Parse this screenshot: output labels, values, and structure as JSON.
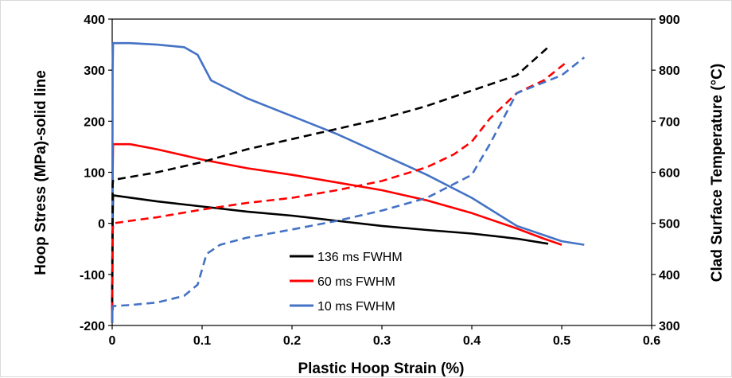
{
  "chart_data": {
    "type": "line",
    "title": "",
    "xlabel": "Plastic Hoop Strain (%)",
    "ylabel": "Hoop Stress (MPa)-solid line",
    "y2label": "Clad Surface Temperature (°C)",
    "xlim": [
      0,
      0.6
    ],
    "ylim": [
      -200,
      400
    ],
    "y2lim": [
      300,
      900
    ],
    "x_ticks": [
      "0",
      "0.1",
      "0.2",
      "0.3",
      "0.4",
      "0.5",
      "0.6"
    ],
    "y_ticks": [
      "-200",
      "-100",
      "0",
      "100",
      "200",
      "300",
      "400"
    ],
    "y2_ticks": [
      "300",
      "400",
      "500",
      "600",
      "700",
      "800",
      "900"
    ],
    "grid": false,
    "legend": {
      "position": "bottom-center",
      "entries": [
        {
          "label": "136 ms FWHM",
          "color": "#000000"
        },
        {
          "label": "60 ms FWHM",
          "color": "#ff0000"
        },
        {
          "label": "10 ms FWHM",
          "color": "#4472c4"
        }
      ]
    },
    "series": [
      {
        "name": "136 ms FWHM",
        "color": "#000000",
        "style": "solid",
        "axis": "left",
        "x": [
          0,
          0.0005,
          0.001,
          0.05,
          0.1,
          0.15,
          0.2,
          0.25,
          0.3,
          0.35,
          0.4,
          0.45,
          0.485
        ],
        "y": [
          -195,
          0,
          55,
          43,
          33,
          23,
          15,
          5,
          -5,
          -13,
          -20,
          -30,
          -40
        ]
      },
      {
        "name": "60 ms FWHM",
        "color": "#ff0000",
        "style": "solid",
        "axis": "left",
        "x": [
          0,
          0.0005,
          0.001,
          0.02,
          0.05,
          0.1,
          0.15,
          0.2,
          0.25,
          0.3,
          0.35,
          0.4,
          0.45,
          0.48,
          0.5
        ],
        "y": [
          -195,
          100,
          155,
          155,
          145,
          125,
          108,
          95,
          80,
          65,
          45,
          20,
          -10,
          -30,
          -42
        ]
      },
      {
        "name": "10 ms FWHM",
        "color": "#4472c4",
        "style": "solid",
        "axis": "left",
        "x": [
          0,
          0.0005,
          0.001,
          0.02,
          0.05,
          0.08,
          0.095,
          0.11,
          0.15,
          0.2,
          0.25,
          0.3,
          0.35,
          0.4,
          0.45,
          0.5,
          0.525
        ],
        "y": [
          -195,
          300,
          353,
          353,
          350,
          345,
          330,
          280,
          245,
          210,
          175,
          135,
          95,
          50,
          -5,
          -35,
          -42
        ]
      },
      {
        "name": "",
        "color": "#000000",
        "style": "dashed",
        "axis": "right",
        "x": [
          0,
          0.0005,
          0.001,
          0.05,
          0.1,
          0.15,
          0.2,
          0.25,
          0.3,
          0.35,
          0.4,
          0.45,
          0.485
        ],
        "y": [
          345,
          575,
          585,
          600,
          620,
          645,
          665,
          685,
          705,
          730,
          760,
          790,
          845
        ]
      },
      {
        "name": "",
        "color": "#ff0000",
        "style": "dashed",
        "axis": "right",
        "x": [
          0,
          0.0005,
          0.001,
          0.02,
          0.05,
          0.1,
          0.15,
          0.2,
          0.25,
          0.3,
          0.35,
          0.38,
          0.4,
          0.42,
          0.45,
          0.48,
          0.505
        ],
        "y": [
          330,
          480,
          500,
          505,
          512,
          527,
          540,
          550,
          565,
          583,
          610,
          635,
          660,
          705,
          755,
          780,
          815
        ]
      },
      {
        "name": "",
        "color": "#4472c4",
        "style": "dashed",
        "axis": "right",
        "x": [
          0,
          0.0005,
          0.001,
          0.02,
          0.05,
          0.08,
          0.095,
          0.105,
          0.12,
          0.15,
          0.2,
          0.25,
          0.3,
          0.35,
          0.4,
          0.42,
          0.45,
          0.5,
          0.525
        ],
        "y": [
          330,
          330,
          338,
          340,
          345,
          358,
          380,
          440,
          458,
          472,
          488,
          505,
          525,
          550,
          595,
          655,
          755,
          790,
          825
        ]
      }
    ]
  }
}
